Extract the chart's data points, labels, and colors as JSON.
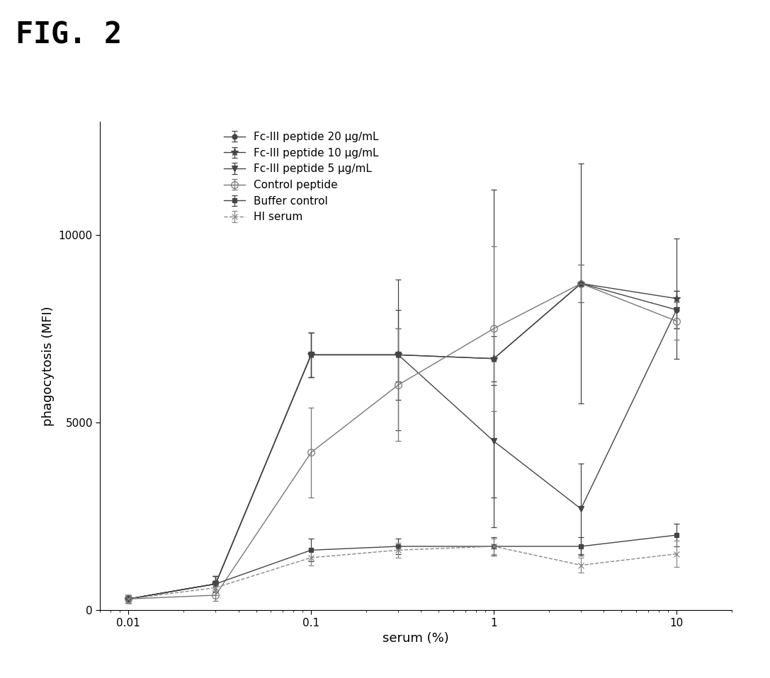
{
  "title": "FIG. 2",
  "xlabel": "serum (%)",
  "ylabel": "phagocytosis (MFI)",
  "x_values": [
    0.01,
    0.03,
    0.1,
    0.3,
    1.0,
    3.0,
    10.0
  ],
  "series": [
    {
      "label": "Fc-III peptide 20 µg/mL",
      "y": [
        300,
        700,
        6800,
        6800,
        6700,
        8700,
        8000
      ],
      "yerr": [
        100,
        200,
        600,
        700,
        600,
        500,
        500
      ],
      "marker": "o",
      "color": "#444444",
      "linestyle": "-",
      "markersize": 5,
      "fillstyle": "full"
    },
    {
      "label": "Fc-III peptide 10 µg/mL",
      "y": [
        300,
        700,
        6800,
        6800,
        6700,
        8700,
        8300
      ],
      "yerr": [
        100,
        200,
        600,
        1200,
        4500,
        3200,
        1600
      ],
      "marker": "*",
      "color": "#444444",
      "linestyle": "-",
      "markersize": 8,
      "fillstyle": "full"
    },
    {
      "label": "Fc-III peptide 5 µg/mL",
      "y": [
        300,
        700,
        6800,
        6800,
        4500,
        2700,
        8000
      ],
      "yerr": [
        100,
        200,
        600,
        2000,
        1500,
        1200,
        500
      ],
      "marker": "v",
      "color": "#444444",
      "linestyle": "-",
      "markersize": 6,
      "fillstyle": "full"
    },
    {
      "label": "Control peptide",
      "y": [
        300,
        400,
        4200,
        6000,
        7500,
        8700,
        7700
      ],
      "yerr": [
        100,
        150,
        1200,
        1500,
        2200,
        500,
        500
      ],
      "marker": "o",
      "color": "#777777",
      "linestyle": "-",
      "markersize": 7,
      "fillstyle": "none"
    },
    {
      "label": "Buffer control",
      "y": [
        300,
        700,
        1600,
        1700,
        1700,
        1700,
        2000
      ],
      "yerr": [
        100,
        200,
        300,
        200,
        250,
        250,
        300
      ],
      "marker": "s",
      "color": "#444444",
      "linestyle": "-",
      "markersize": 5,
      "fillstyle": "full"
    },
    {
      "label": "HI serum",
      "y": [
        300,
        600,
        1400,
        1600,
        1700,
        1200,
        1500
      ],
      "yerr": [
        100,
        200,
        200,
        200,
        200,
        200,
        350
      ],
      "marker": "x",
      "color": "#888888",
      "linestyle": "--",
      "markersize": 6,
      "fillstyle": "full"
    }
  ],
  "xlim": [
    0.007,
    20
  ],
  "ylim": [
    0,
    13000
  ],
  "yticks": [
    0,
    5000,
    10000
  ],
  "background_color": "#ffffff",
  "fig_title_fontsize": 30,
  "axis_label_fontsize": 13,
  "tick_fontsize": 11,
  "legend_fontsize": 11
}
